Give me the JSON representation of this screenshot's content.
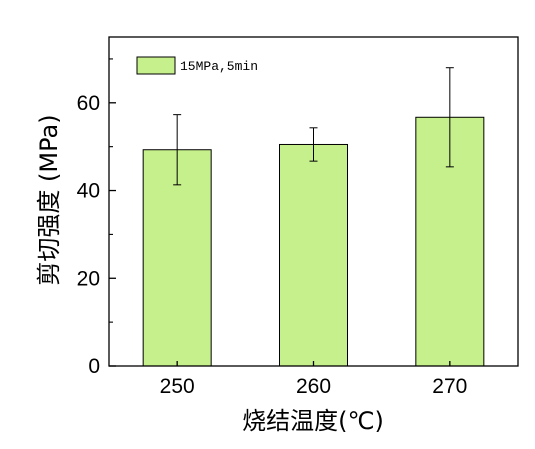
{
  "chart_data": {
    "type": "bar",
    "categories": [
      "250",
      "260",
      "270"
    ],
    "series": [
      {
        "name": "15MPa,5min",
        "values": [
          49.3,
          50.5,
          56.7
        ],
        "errors": [
          8.0,
          3.8,
          11.3
        ],
        "color": "#c6f08c",
        "edge_color": "#000000"
      }
    ],
    "xlabel": "烧结温度(℃)",
    "ylabel": "剪切强度 (MPa)",
    "ylim": [
      0,
      75
    ],
    "yticks": [
      0,
      20,
      40,
      60
    ],
    "grid": false,
    "legend_position": "top-left"
  }
}
